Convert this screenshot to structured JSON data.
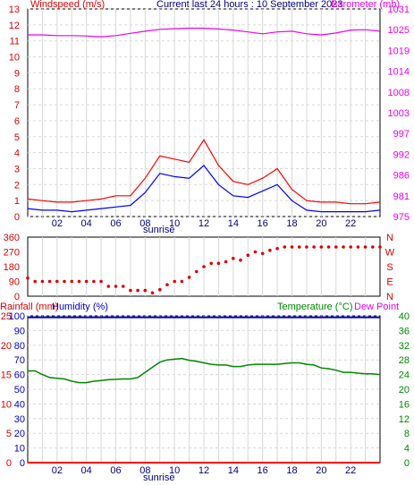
{
  "header": {
    "left_title": "Windspeed (m/s)",
    "center_title": "Current last 24 hours : 10 September 2023",
    "right_title": "Barometer (mb)"
  },
  "bottom_header": {
    "rainfall": "Rainfall (mm)",
    "humidity": "Humidity (%)",
    "temperature": "Temperature (°C)",
    "dewpoint": "Dew Point"
  },
  "sunrise_label": "sunrise",
  "colors": {
    "wind_gust": "#ff0000",
    "wind_avg": "#0000ff",
    "barometer": "#ee00ee",
    "direction": "#dd0000",
    "humidity": "#0000cc",
    "temperature": "#008800",
    "rainfall": "#ff0000",
    "grid_vertical": "#d8d8d8",
    "grid_horizontal": "#d8d8d8"
  },
  "chart_data": [
    {
      "id": "wind",
      "type": "line",
      "x_ticks": [
        "02",
        "04",
        "06",
        "08",
        "10",
        "12",
        "14",
        "16",
        "18",
        "20",
        "22"
      ],
      "y_left_ticks": [
        "0",
        "1",
        "2",
        "3",
        "4",
        "5",
        "6",
        "7",
        "8",
        "9",
        "10",
        "11",
        "12",
        "13"
      ],
      "y_right_ticks": [
        "975",
        "981",
        "986",
        "992",
        "997",
        "1003",
        "1008",
        "1014",
        "1019",
        "1025",
        "1031"
      ],
      "ylim": [
        0,
        13
      ],
      "ylim_right": [
        975,
        1031
      ],
      "series": [
        {
          "name": "Windspeed gust",
          "x": [
            0,
            1,
            2,
            3,
            4,
            5,
            6,
            7,
            8,
            9,
            10,
            11,
            12,
            13,
            14,
            15,
            16,
            17,
            18,
            19,
            20,
            21,
            22,
            23,
            24
          ],
          "values": [
            1.1,
            1.0,
            0.9,
            0.9,
            1.0,
            1.1,
            1.3,
            1.3,
            2.4,
            3.8,
            3.6,
            3.4,
            4.8,
            3.2,
            2.2,
            2.0,
            2.4,
            3.0,
            1.7,
            1.0,
            0.9,
            0.9,
            0.8,
            0.8,
            0.9
          ]
        },
        {
          "name": "Windspeed average",
          "x": [
            0,
            1,
            2,
            3,
            4,
            5,
            6,
            7,
            8,
            9,
            10,
            11,
            12,
            13,
            14,
            15,
            16,
            17,
            18,
            19,
            20,
            21,
            22,
            23,
            24
          ],
          "values": [
            0.5,
            0.4,
            0.4,
            0.3,
            0.4,
            0.5,
            0.6,
            0.7,
            1.5,
            2.7,
            2.5,
            2.4,
            3.2,
            2.0,
            1.3,
            1.2,
            1.6,
            2.0,
            1.0,
            0.4,
            0.3,
            0.3,
            0.3,
            0.3,
            0.4
          ]
        },
        {
          "name": "Barometer",
          "x": [
            0,
            1,
            2,
            3,
            4,
            5,
            6,
            7,
            8,
            9,
            10,
            11,
            12,
            13,
            14,
            15,
            16,
            17,
            18,
            19,
            20,
            21,
            22,
            23,
            24
          ],
          "values": [
            1024.0,
            1024.0,
            1023.8,
            1023.8,
            1023.7,
            1023.5,
            1023.8,
            1024.4,
            1025.0,
            1025.5,
            1025.7,
            1025.8,
            1025.8,
            1025.6,
            1025.3,
            1024.8,
            1024.3,
            1024.8,
            1025.0,
            1024.3,
            1024.0,
            1024.5,
            1025.3,
            1025.4,
            1025.0
          ]
        }
      ]
    },
    {
      "id": "direction",
      "type": "scatter",
      "y_left_ticks": [
        "0",
        "90",
        "180",
        "270",
        "360"
      ],
      "y_right_ticks": [
        "N",
        "E",
        "S",
        "W",
        "N"
      ],
      "ylim": [
        0,
        360
      ],
      "series": [
        {
          "name": "Wind direction",
          "x": [
            0,
            0.5,
            1,
            1.5,
            2,
            2.5,
            3,
            3.5,
            4,
            4.5,
            5,
            5.5,
            6,
            6.5,
            7,
            7.5,
            8,
            8.5,
            9,
            9.5,
            10,
            10.5,
            11,
            11.5,
            12,
            12.5,
            13,
            13.5,
            14,
            14.5,
            15,
            15.5,
            16,
            16.5,
            17,
            17.5,
            18,
            18.5,
            19,
            19.5,
            20,
            20.5,
            21,
            21.5,
            22,
            22.5,
            23,
            23.5,
            24
          ],
          "values": [
            110,
            90,
            90,
            90,
            90,
            90,
            90,
            90,
            90,
            90,
            90,
            60,
            60,
            60,
            35,
            35,
            35,
            20,
            40,
            70,
            90,
            90,
            115,
            150,
            180,
            200,
            200,
            210,
            230,
            220,
            250,
            270,
            260,
            280,
            290,
            300,
            300,
            300,
            300,
            300,
            300,
            300,
            300,
            300,
            300,
            300,
            300,
            300,
            300
          ]
        }
      ]
    },
    {
      "id": "temp_hum",
      "type": "line",
      "y_left_ticks": [
        "0",
        "5",
        "10",
        "15",
        "20",
        "25"
      ],
      "y_hum_ticks": [
        "0",
        "10",
        "20",
        "30",
        "40",
        "50",
        "60",
        "70",
        "80",
        "90",
        "100"
      ],
      "y_right_ticks": [
        "0",
        "4",
        "8",
        "12",
        "16",
        "20",
        "24",
        "28",
        "32",
        "36",
        "40"
      ],
      "ylim": [
        0,
        100
      ],
      "ylim_right": [
        0,
        40
      ],
      "series": [
        {
          "name": "Temperature",
          "x": [
            0,
            0.5,
            1,
            1.5,
            2,
            2.5,
            3,
            3.5,
            4,
            4.5,
            5,
            5.5,
            6,
            6.5,
            7,
            7.5,
            8,
            8.5,
            9,
            9.5,
            10,
            10.5,
            11,
            11.5,
            12,
            12.5,
            13,
            13.5,
            14,
            14.5,
            15,
            15.5,
            16,
            16.5,
            17,
            17.5,
            18,
            18.5,
            19,
            19.5,
            20,
            20.5,
            21,
            21.5,
            22,
            22.5,
            23,
            23.5,
            24
          ],
          "values": [
            25.0,
            25.0,
            24.0,
            23.2,
            23.0,
            22.8,
            22.2,
            21.8,
            21.8,
            22.2,
            22.4,
            22.6,
            22.7,
            22.8,
            22.8,
            23.2,
            24.6,
            26.0,
            27.4,
            28.0,
            28.2,
            28.4,
            27.9,
            27.6,
            27.2,
            26.8,
            26.6,
            26.6,
            26.2,
            26.2,
            26.6,
            26.8,
            26.8,
            26.8,
            26.8,
            27.0,
            27.2,
            27.2,
            26.8,
            26.6,
            25.8,
            25.6,
            25.2,
            24.6,
            24.6,
            24.4,
            24.2,
            24.2,
            24.0
          ]
        },
        {
          "name": "Humidity",
          "x": [
            0,
            24
          ],
          "values": [
            99,
            99
          ]
        },
        {
          "name": "Rainfall",
          "x": [
            0,
            24
          ],
          "values": [
            0,
            0
          ]
        }
      ]
    }
  ]
}
